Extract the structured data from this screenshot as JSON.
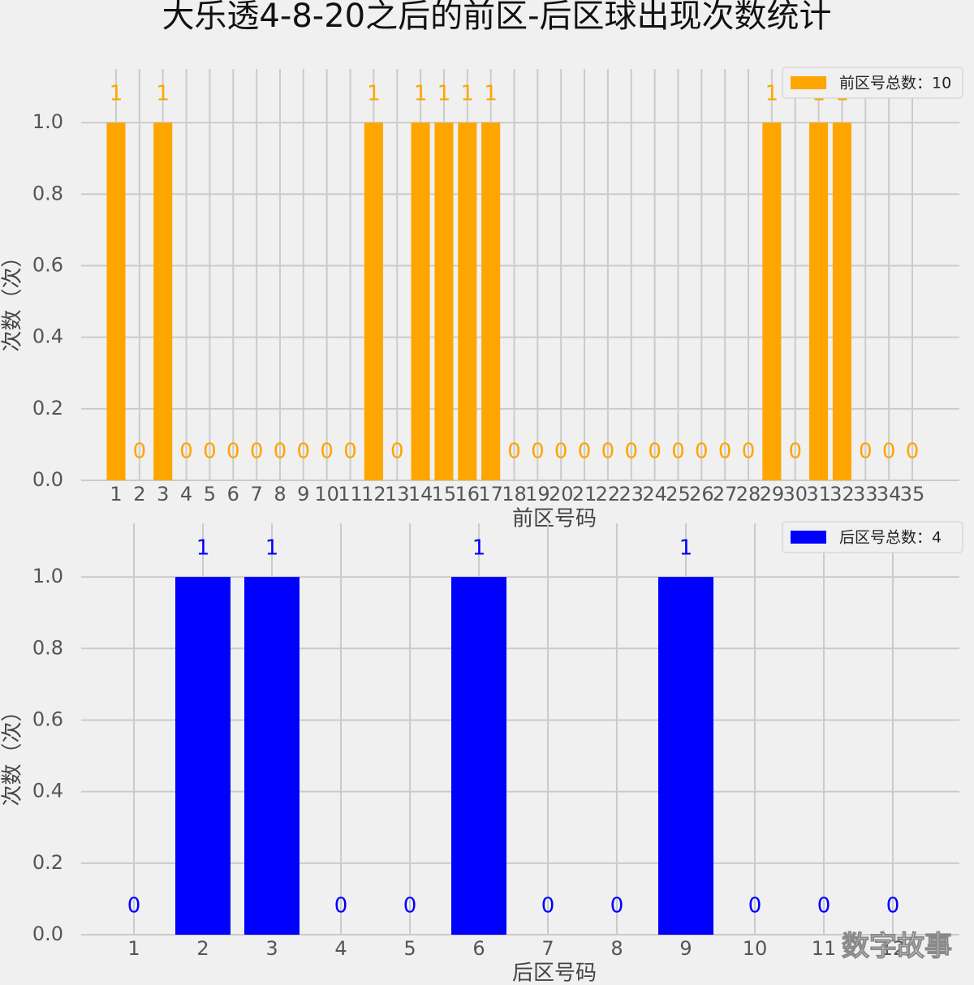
{
  "title": "大乐透4-8-20之后的前区-后区球出现次数统计",
  "watermark": "数字故事",
  "chart_data": [
    {
      "type": "bar",
      "xlabel": "前区号码",
      "ylabel": "次数（次）",
      "categories": [
        "1",
        "2",
        "3",
        "4",
        "5",
        "6",
        "7",
        "8",
        "9",
        "10",
        "11",
        "12",
        "13",
        "14",
        "15",
        "16",
        "17",
        "18",
        "19",
        "20",
        "21",
        "22",
        "23",
        "24",
        "25",
        "26",
        "27",
        "28",
        "29",
        "30",
        "31",
        "32",
        "33",
        "34",
        "35"
      ],
      "series": [
        {
          "name": "前区号总数：10",
          "color": "orange",
          "values": [
            1,
            0,
            1,
            0,
            0,
            0,
            0,
            0,
            0,
            0,
            0,
            1,
            0,
            1,
            1,
            1,
            1,
            0,
            0,
            0,
            0,
            0,
            0,
            0,
            0,
            0,
            0,
            0,
            1,
            0,
            1,
            1,
            0,
            0,
            0
          ]
        }
      ],
      "ylim": [
        0,
        1.15
      ],
      "yticks": [
        {
          "value": 0,
          "label": "0.0"
        },
        0.2,
        0.4,
        0.6,
        0.8,
        {
          "value": 1,
          "label": "1.0"
        }
      ],
      "grid": true,
      "legend": "upper right"
    },
    {
      "type": "bar",
      "xlabel": "后区号码",
      "ylabel": "次数（次）",
      "categories": [
        "1",
        "2",
        "3",
        "4",
        "5",
        "6",
        "7",
        "8",
        "9",
        "10",
        "11",
        "12"
      ],
      "series": [
        {
          "name": "后区号总数：4",
          "color": "blue",
          "values": [
            0,
            1,
            1,
            0,
            0,
            1,
            0,
            0,
            1,
            0,
            0,
            0
          ]
        }
      ],
      "ylim": [
        0,
        1.15
      ],
      "yticks": [
        {
          "value": 0,
          "label": "0.0"
        },
        0.2,
        0.4,
        0.6,
        0.8,
        {
          "value": 1,
          "label": "1.0"
        }
      ],
      "grid": true,
      "legend": "upper right"
    }
  ]
}
